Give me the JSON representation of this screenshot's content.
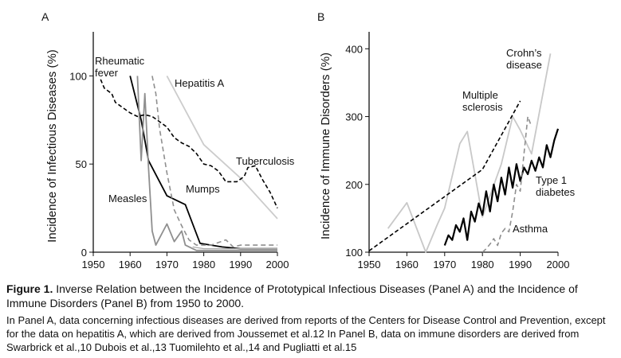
{
  "chart_data": [
    {
      "type": "line",
      "panel_label": "A",
      "title": "",
      "ylabel": "Incidence of Infectious Diseases (%)",
      "xlabel": "",
      "xlim": [
        1950,
        2000
      ],
      "ylim": [
        0,
        125
      ],
      "x_ticks": [
        1950,
        1960,
        1970,
        1980,
        1990,
        2000
      ],
      "y_ticks": [
        0,
        50,
        100
      ],
      "grid": false,
      "series": [
        {
          "name": "Rheumatic fever",
          "label_lines": [
            "Rheumatic",
            "fever"
          ],
          "color": "#000000",
          "dash": "",
          "width": 1.8,
          "x": [
            1960,
            1963,
            1965,
            1970,
            1975,
            1979,
            1985,
            1990,
            2000
          ],
          "y": [
            100,
            75,
            52,
            32,
            27,
            5,
            3,
            2,
            2
          ]
        },
        {
          "name": "Measles",
          "label_lines": [
            "Measles"
          ],
          "color": "#8f8f8f",
          "dash": "",
          "width": 1.8,
          "x": [
            1962,
            1963,
            1964,
            1965,
            1966,
            1967,
            1970,
            1972,
            1974,
            1975,
            1978,
            1980,
            2000
          ],
          "y": [
            100,
            52,
            90,
            48,
            12,
            4,
            16,
            6,
            12,
            4,
            1,
            1,
            1
          ]
        },
        {
          "name": "Mumps",
          "label_lines": [
            "Mumps"
          ],
          "color": "#8f8f8f",
          "dash": "6,4",
          "width": 1.6,
          "x": [
            1966,
            1967,
            1968,
            1970,
            1972,
            1974,
            1976,
            1978,
            1982,
            1986,
            1988,
            1990,
            2000
          ],
          "y": [
            100,
            90,
            70,
            45,
            24,
            15,
            7,
            4,
            4,
            7,
            3,
            4,
            4
          ]
        },
        {
          "name": "Hepatitis A",
          "label_lines": [
            "Hepatitis A"
          ],
          "color": "#cccccc",
          "dash": "",
          "width": 1.8,
          "x": [
            1970,
            1980,
            1990,
            2000
          ],
          "y": [
            100,
            61,
            42,
            19
          ]
        },
        {
          "name": "Tuberculosis",
          "label_lines": [
            "Tuberculosis"
          ],
          "color": "#000000",
          "dash": "5,3",
          "width": 1.6,
          "x": [
            1952,
            1953,
            1955,
            1956,
            1958,
            1960,
            1962,
            1964,
            1966,
            1968,
            1970,
            1972,
            1974,
            1976,
            1978,
            1980,
            1982,
            1984,
            1986,
            1988,
            1989,
            1991,
            1992,
            1994,
            1996,
            1998,
            2000
          ],
          "y": [
            98,
            93,
            90,
            85,
            82,
            79,
            77,
            78,
            77,
            74,
            71,
            65,
            62,
            60,
            56,
            50,
            49,
            46,
            40,
            40,
            40,
            43,
            48,
            49,
            41,
            34,
            25
          ]
        },
        {
          "name": "",
          "label_lines": [],
          "color": "#aaaaaa",
          "dash": "",
          "width": 1.2,
          "x": [
            1977,
            1980,
            1985,
            1990,
            2000
          ],
          "y": [
            3,
            2,
            2,
            2,
            2
          ]
        }
      ]
    },
    {
      "type": "line",
      "panel_label": "B",
      "title": "",
      "ylabel": "Incidence of Immune Disorders (%)",
      "xlabel": "",
      "xlim": [
        1950,
        2000
      ],
      "ylim": [
        100,
        425
      ],
      "x_ticks": [
        1950,
        1960,
        1970,
        1980,
        1990,
        2000
      ],
      "y_ticks": [
        100,
        200,
        300,
        400
      ],
      "grid": false,
      "series": [
        {
          "name": "Crohn's disease",
          "label_lines": [
            "Crohn’s",
            "disease"
          ],
          "color": "#c8c8c8",
          "dash": "",
          "width": 1.8,
          "x": [
            1955,
            1960,
            1965,
            1968,
            1970,
            1974,
            1976,
            1980,
            1985,
            1988,
            1990,
            1993,
            1998
          ],
          "y": [
            135,
            173,
            100,
            140,
            165,
            260,
            278,
            152,
            230,
            300,
            280,
            245,
            393
          ]
        },
        {
          "name": "Multiple sclerosis",
          "label_lines": [
            "Multiple",
            "sclerosis"
          ],
          "color": "#000000",
          "dash": "5,3",
          "width": 1.6,
          "x": [
            1950,
            1980,
            1990
          ],
          "y": [
            102,
            222,
            323
          ]
        },
        {
          "name": "Type 1 diabetes",
          "label_lines": [
            "Type 1",
            "diabetes"
          ],
          "color": "#000000",
          "dash": "",
          "width": 2.2,
          "x": [
            1970,
            1971,
            1972,
            1973,
            1974,
            1975,
            1976,
            1977,
            1978,
            1979,
            1980,
            1981,
            1982,
            1983,
            1984,
            1985,
            1986,
            1987,
            1988,
            1989,
            1990,
            1991,
            1992,
            1993,
            1994,
            1995,
            1996,
            1997,
            1998,
            1999,
            2000
          ],
          "y": [
            110,
            125,
            118,
            140,
            130,
            150,
            118,
            160,
            145,
            172,
            155,
            190,
            160,
            200,
            175,
            210,
            185,
            225,
            195,
            230,
            205,
            225,
            215,
            235,
            220,
            240,
            225,
            258,
            240,
            265,
            282
          ]
        },
        {
          "name": "Asthma",
          "label_lines": [
            "Asthma"
          ],
          "color": "#8f8f8f",
          "dash": "6,4",
          "width": 1.6,
          "x": [
            1980,
            1981,
            1982,
            1983,
            1984,
            1985,
            1986,
            1987,
            1988,
            1989,
            1990,
            1991,
            1992,
            1993
          ],
          "y": [
            100,
            105,
            112,
            120,
            110,
            128,
            135,
            130,
            160,
            200,
            190,
            245,
            300,
            285
          ]
        }
      ]
    }
  ],
  "caption": {
    "figure_label": "Figure 1.",
    "title": "Inverse Relation between the Incidence of Prototypical Infectious Diseases (Panel A) and the Incidence of Immune Disorders (Panel B) from 1950 to 2000.",
    "body": "In Panel A, data concerning infectious diseases are derived from reports of the Centers for Disease Control and Prevention, except for the data on hepatitis A, which are derived from Joussemet et al.12 In Panel B, data on immune disorders are derived from Swarbrick et al.,10 Dubois et al.,13 Tuomilehto et al.,14 and Pugliatti et al.15"
  }
}
